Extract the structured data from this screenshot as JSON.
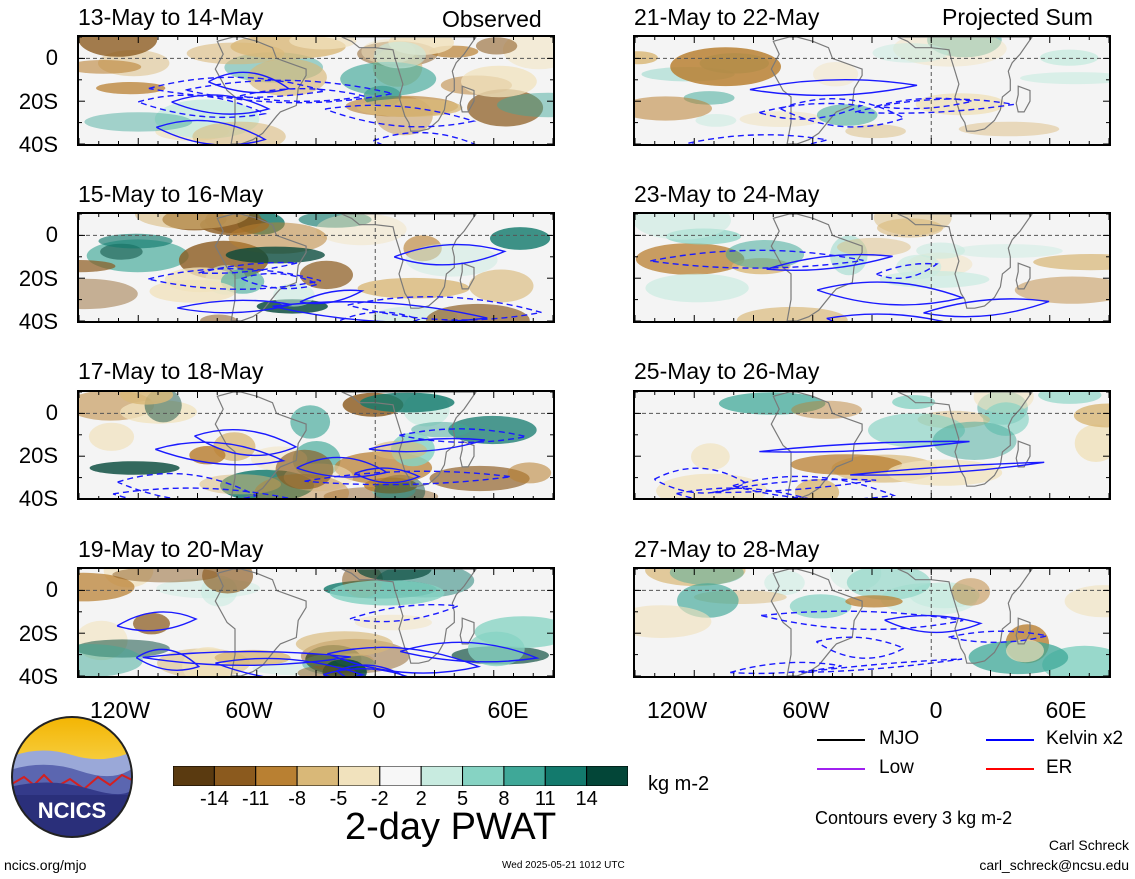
{
  "headers": {
    "observed": "Observed",
    "projected": "Projected Sum"
  },
  "panels": {
    "left": [
      "13-May to 14-May",
      "15-May to 16-May",
      "17-May to 18-May",
      "19-May to 20-May"
    ],
    "right": [
      "21-May to 22-May",
      "23-May to 24-May",
      "25-May to 26-May",
      "27-May to 28-May"
    ]
  },
  "lat_labels": [
    "0",
    "20S",
    "40S"
  ],
  "lon_labels": [
    "120W",
    "60W",
    "0",
    "60E"
  ],
  "legend": {
    "items": [
      {
        "label": "MJO",
        "color": "#000000"
      },
      {
        "label": "Kelvin x2",
        "color": "#0000ff"
      },
      {
        "label": "Low",
        "color": "#a020f0"
      },
      {
        "label": "ER",
        "color": "#ff0000"
      }
    ],
    "contour_note": "Contours every 3 kg m-2"
  },
  "colorbar": {
    "colors": [
      "#5a3a10",
      "#8b5a1e",
      "#b98032",
      "#d9b878",
      "#f1e2bd",
      "#f7f7f7",
      "#c8ebe0",
      "#86d3c3",
      "#3fa898",
      "#137a6d",
      "#034638"
    ],
    "tick_labels": [
      "-14",
      "-11",
      "-8",
      "-5",
      "-2",
      "2",
      "5",
      "8",
      "11",
      "14"
    ],
    "units": "kg m-2",
    "title": "2-day PWAT"
  },
  "logo_text": "NCICS",
  "footer": {
    "left": "ncics.org/mjo",
    "center": "Wed 2025-05-21 1012 UTC",
    "author": "Carl Schreck",
    "email": "carl_schreck@ncsu.edu"
  }
}
